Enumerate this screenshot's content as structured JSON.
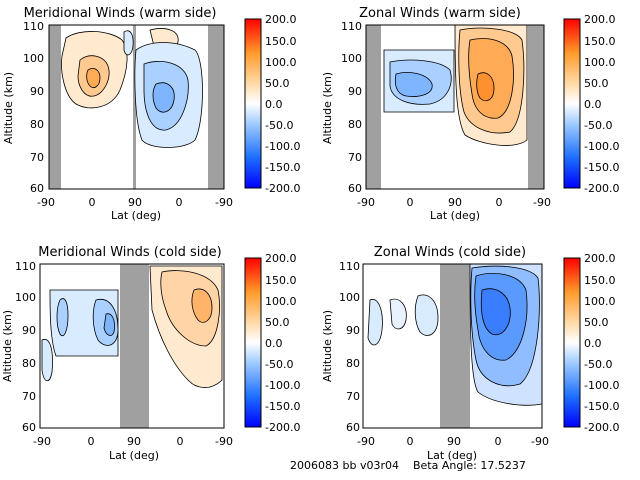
{
  "chart_data": [
    {
      "type": "heatmap",
      "title": "Meridional Winds (warm side)",
      "xlabel": "Lat (deg)",
      "ylabel": "Altitude (km)",
      "xticks": [
        "-90",
        "0",
        "90",
        "0",
        "-90"
      ],
      "yticks": [
        "60",
        "70",
        "80",
        "90",
        "100",
        "110"
      ],
      "ylim": [
        60,
        110
      ],
      "colorbar": {
        "ticks": [
          "200.0",
          "150.0",
          "100.0",
          "50.0",
          "0.0",
          "-50.0",
          "-100.0",
          "-150.0",
          "-200.0"
        ],
        "range": [
          -200,
          200
        ]
      }
    },
    {
      "type": "heatmap",
      "title": "Zonal Winds (warm side)",
      "xlabel": "Lat (deg)",
      "ylabel": "Altitude (km)",
      "xticks": [
        "-90",
        "0",
        "90",
        "0",
        "-90"
      ],
      "yticks": [
        "60",
        "70",
        "80",
        "90",
        "100",
        "110"
      ],
      "ylim": [
        60,
        110
      ],
      "colorbar": {
        "ticks": [
          "200.0",
          "150.0",
          "100.0",
          "50.0",
          "0.0",
          "-50.0",
          "-100.0",
          "-150.0",
          "-200.0"
        ],
        "range": [
          -200,
          200
        ]
      }
    },
    {
      "type": "heatmap",
      "title": "Meridional Winds (cold side)",
      "xlabel": "Lat (deg)",
      "ylabel": "Altitude (km)",
      "xticks": [
        "-90",
        "0",
        "90",
        "0",
        "-90"
      ],
      "yticks": [
        "60",
        "70",
        "80",
        "90",
        "100",
        "110"
      ],
      "ylim": [
        60,
        110
      ],
      "colorbar": {
        "ticks": [
          "200.0",
          "150.0",
          "100.0",
          "50.0",
          "0.0",
          "-50.0",
          "-100.0",
          "-150.0",
          "-200.0"
        ],
        "range": [
          -200,
          200
        ]
      }
    },
    {
      "type": "heatmap",
      "title": "Zonal Winds (cold side)",
      "xlabel": "Lat (deg)",
      "ylabel": "Altitude (km)",
      "xticks": [
        "-90",
        "0",
        "90",
        "0",
        "-90"
      ],
      "yticks": [
        "60",
        "70",
        "80",
        "90",
        "100",
        "110"
      ],
      "ylim": [
        60,
        110
      ],
      "colorbar": {
        "ticks": [
          "200.0",
          "150.0",
          "100.0",
          "50.0",
          "0.0",
          "-50.0",
          "-100.0",
          "-150.0",
          "-200.0"
        ],
        "range": [
          -200,
          200
        ]
      }
    }
  ],
  "footer": {
    "run_id": "2006083 bb v03r04",
    "beta_angle": "Beta Angle: 17.5237"
  },
  "colors": {
    "no_data": "#a0a0a0",
    "negative_strong": "#1e3cff",
    "negative_weak": "#cfe6ff",
    "positive_weak": "#ffe6c8",
    "positive_strong": "#ff8a1a"
  }
}
